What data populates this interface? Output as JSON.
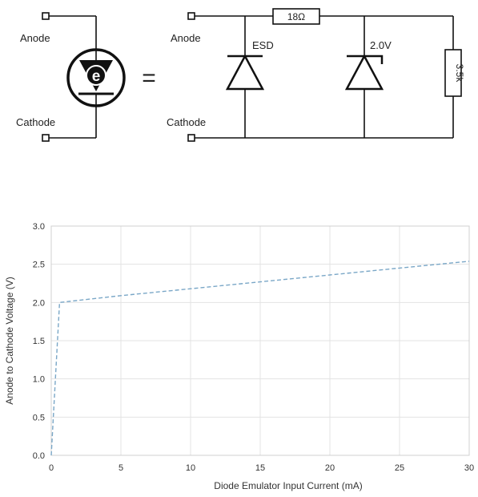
{
  "schematic": {
    "symbol": {
      "anode_label": "Anode",
      "cathode_label": "Cathode",
      "badge_letter": "e",
      "equals_sign": "="
    },
    "circuit": {
      "anode_label": "Anode",
      "cathode_label": "Cathode",
      "resistor_series_label": "18Ω",
      "esd_label": "ESD",
      "zener_label": "2.0V",
      "resistor_shunt_label": "3.5k"
    }
  },
  "chart_data": {
    "type": "line",
    "title": "",
    "xlabel": "Diode Emulator Input Current (mA)",
    "ylabel": "Anode to Cathode Voltage (V)",
    "xlim": [
      0,
      30
    ],
    "ylim": [
      0,
      3.0
    ],
    "x_ticks": [
      "0",
      "5",
      "10",
      "15",
      "20",
      "25",
      "30"
    ],
    "y_ticks": [
      "0.0",
      "0.5",
      "1.0",
      "1.5",
      "2.0",
      "2.5",
      "3.0"
    ],
    "grid": true,
    "legend": "none",
    "series": [
      {
        "color": "#7aa7c7",
        "style": "dashed",
        "x": [
          0,
          0.6,
          5,
          10,
          15,
          20,
          25,
          30
        ],
        "y": [
          0,
          2.0,
          2.09,
          2.18,
          2.27,
          2.36,
          2.45,
          2.54
        ]
      }
    ]
  }
}
